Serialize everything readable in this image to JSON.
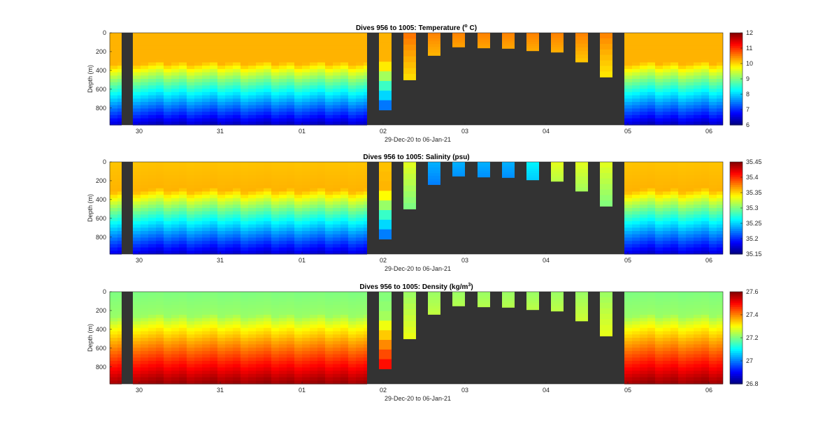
{
  "figure": {
    "background": "#ffffff",
    "void_color": "#333333"
  },
  "chart_data": [
    {
      "type": "heatmap",
      "title_main": "Dives 956 to 1005: Temperature (",
      "title_sup": "o",
      "title_tail": " C)",
      "xlabel": "29-Dec-20 to 06-Jan-21",
      "ylabel": "Depth (m)",
      "yticks": [
        "0",
        "200",
        "400",
        "600",
        "800"
      ],
      "ylim": [
        0,
        980
      ],
      "xticks": [
        "30",
        "31",
        "01",
        "02",
        "03",
        "04",
        "05",
        "06"
      ],
      "colorbar_ticks": [
        "12",
        "11",
        "10",
        "9",
        "8",
        "7",
        "6"
      ],
      "clim": [
        6,
        12
      ],
      "profile": {
        "surface": 10.2,
        "mid": 10.2,
        "mid_depth": 320,
        "deep": 6.4,
        "bottom": 980
      },
      "short_dive_values": [
        10.8,
        10.6,
        10.5,
        10.5,
        10.5,
        10.5,
        10.5,
        10.5
      ],
      "colormap": "jet"
    },
    {
      "type": "heatmap",
      "title_main": "Dives 956 to 1005: Salinity (psu)",
      "title_sup": "",
      "title_tail": "",
      "xlabel": "29-Dec-20 to 06-Jan-21",
      "ylabel": "Depth (m)",
      "yticks": [
        "0",
        "200",
        "400",
        "600",
        "800"
      ],
      "ylim": [
        0,
        980
      ],
      "xticks": [
        "30",
        "31",
        "01",
        "02",
        "03",
        "04",
        "05",
        "06"
      ],
      "colorbar_ticks": [
        "35.45",
        "35.4",
        "35.35",
        "35.3",
        "35.25",
        "35.2",
        "35.15"
      ],
      "clim": [
        35.15,
        35.45
      ],
      "profile": {
        "surface": 35.355,
        "mid": 35.36,
        "mid_depth": 300,
        "deep": 35.175,
        "bottom": 980
      },
      "short_dive_values": [
        35.34,
        35.33,
        35.24,
        35.24,
        35.24,
        35.24,
        35.26,
        35.33
      ],
      "colormap": "jet"
    },
    {
      "type": "heatmap",
      "title_main": "Dives 956 to 1005: Density (kg/m",
      "title_sup": "3",
      "title_tail": ")",
      "xlabel": "29-Dec-20 to 06-Jan-21",
      "ylabel": "Depth (m)",
      "yticks": [
        "0",
        "200",
        "400",
        "600",
        "800"
      ],
      "ylim": [
        0,
        980
      ],
      "xticks": [
        "30",
        "31",
        "01",
        "02",
        "03",
        "04",
        "05",
        "06"
      ],
      "colorbar_ticks": [
        "27.6",
        "27.4",
        "27.2",
        "27",
        "26.8"
      ],
      "clim": [
        26.8,
        27.6
      ],
      "profile": {
        "surface": 27.2,
        "mid": 27.22,
        "mid_depth": 250,
        "deep": 27.58,
        "bottom": 980
      },
      "short_dive_values": [
        27.4,
        27.22,
        27.22,
        27.22,
        27.22,
        27.22,
        27.22,
        27.22
      ],
      "colormap": "jet"
    }
  ]
}
